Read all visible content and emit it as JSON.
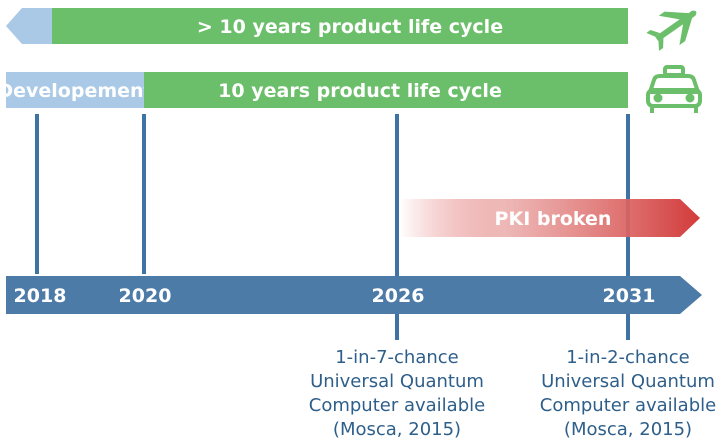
{
  "colors": {
    "green": "#6cbf6a",
    "light_blue": "#a9c9e6",
    "timeline_blue": "#4c7ba7",
    "marker_blue": "#3f73a3",
    "red": "#d9413f",
    "note_text": "#2e5f8a"
  },
  "rows": {
    "aircraft": {
      "label": "> 10 years product life cycle",
      "icon": "airplane-icon"
    },
    "car": {
      "dev_label": "Developement",
      "label": "10 years product life cycle",
      "icon": "car-icon"
    }
  },
  "pki": {
    "label": "PKI broken"
  },
  "timeline": {
    "years": [
      "2018",
      "2020",
      "2026",
      "2031"
    ]
  },
  "notes": [
    {
      "lines": [
        "1-in-7-chance",
        "Universal Quantum",
        "Computer available",
        "(Mosca, 2015)"
      ]
    },
    {
      "lines": [
        "1-in-2-chance",
        "Universal Quantum",
        "Computer available",
        "(Mosca, 2015)"
      ]
    }
  ]
}
